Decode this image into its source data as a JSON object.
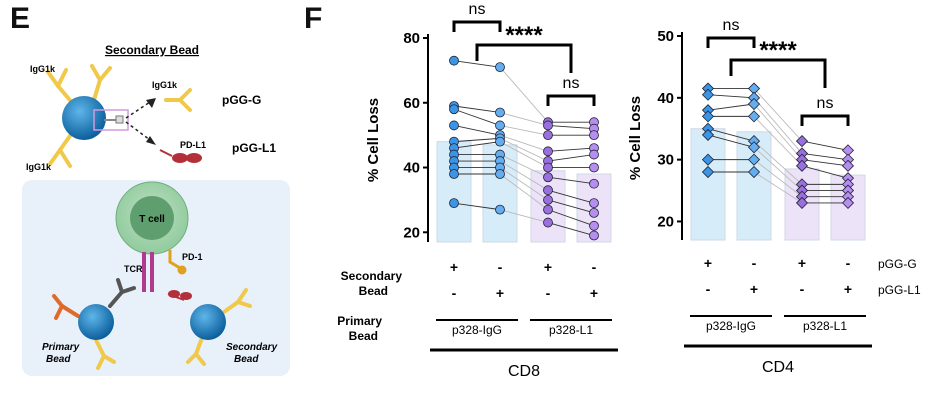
{
  "panel_e": {
    "letter": "E",
    "secondary_bead_title": "Secondary Bead",
    "igg1k_label": "IgG1k",
    "pgg_g_label": "pGG-G",
    "pdl1_label": "PD-L1",
    "pgg_l1_label": "pGG-L1",
    "tcell_label": "T cell",
    "tcr_label": "TCR",
    "pd1_label": "PD-1",
    "primary_bead_label": [
      "Primary",
      "Bead"
    ],
    "secondary_bead_label": [
      "Secondary",
      "Bead"
    ],
    "colors": {
      "bead": "#1a7fc1",
      "antibody": "#f0c94a",
      "pdl1": "#b3303a",
      "tcell": "#8cc99a",
      "panel_bg": "#e8f0fa"
    }
  },
  "panel_f": {
    "letter": "F"
  },
  "table": {
    "secondary_bead": [
      "Secondary",
      "Bead"
    ],
    "primary_bead": [
      "Primary",
      "Bead"
    ]
  },
  "chart_data": [
    {
      "type": "bar",
      "group": "CD8",
      "ylabel": "% Cell Loss",
      "ylim": [
        17,
        80
      ],
      "yticks": [
        20,
        40,
        60,
        80
      ],
      "bars": [
        48,
        47,
        39,
        38
      ],
      "bar_colors": [
        "#d6ecf8",
        "#d6ecf8",
        "#ece3f8",
        "#ece3f8"
      ],
      "point_colors": [
        "#3a95e6",
        "#62aef0",
        "#9a6fde",
        "#b68ef0"
      ],
      "points": [
        [
          73,
          59,
          58,
          53,
          48,
          46,
          44,
          42,
          40,
          38,
          29
        ],
        [
          71,
          57,
          53,
          50,
          49,
          48,
          44,
          42,
          40,
          38,
          27
        ],
        [
          54,
          53,
          50,
          45,
          42,
          40,
          37,
          33,
          30,
          27,
          23
        ],
        [
          54,
          52,
          50,
          46,
          44,
          40,
          35,
          29,
          26,
          22,
          19
        ]
      ],
      "signif": [
        "ns",
        "****",
        "ns"
      ],
      "secondary_bead": [
        "+",
        "-",
        "+",
        "-"
      ],
      "pgg_l1": [
        "-",
        "+",
        "-",
        "+"
      ],
      "primary_groups": [
        "p328-IgG",
        "p328-L1"
      ],
      "group_label": "CD8"
    },
    {
      "type": "bar",
      "group": "CD4",
      "ylabel": "% Cell  Loss",
      "ylim": [
        17,
        50
      ],
      "yticks": [
        20,
        30,
        40,
        50
      ],
      "bars": [
        35,
        34.5,
        28.5,
        27.5
      ],
      "bar_colors": [
        "#d6ecf8",
        "#d6ecf8",
        "#ece3f8",
        "#ece3f8"
      ],
      "point_colors": [
        "#3a95e6",
        "#62aef0",
        "#9a6fde",
        "#b68ef0"
      ],
      "points": [
        [
          41.5,
          40.5,
          38,
          37,
          35,
          34,
          30,
          28
        ],
        [
          41.5,
          40,
          39,
          37,
          33,
          32,
          30,
          28
        ],
        [
          33,
          31,
          30,
          29,
          26,
          25,
          24,
          23
        ],
        [
          31.5,
          30,
          29,
          27,
          26,
          25,
          24,
          23
        ]
      ],
      "signif": [
        "ns",
        "****",
        "ns"
      ],
      "secondary_bead": [
        "+",
        "-",
        "+",
        "-"
      ],
      "pgg_l1": [
        "-",
        "+",
        "-",
        "+"
      ],
      "row_labels": [
        "pGG-G",
        "pGG-L1"
      ],
      "primary_groups": [
        "p328-IgG",
        "p328-L1"
      ],
      "group_label": "CD4"
    }
  ]
}
